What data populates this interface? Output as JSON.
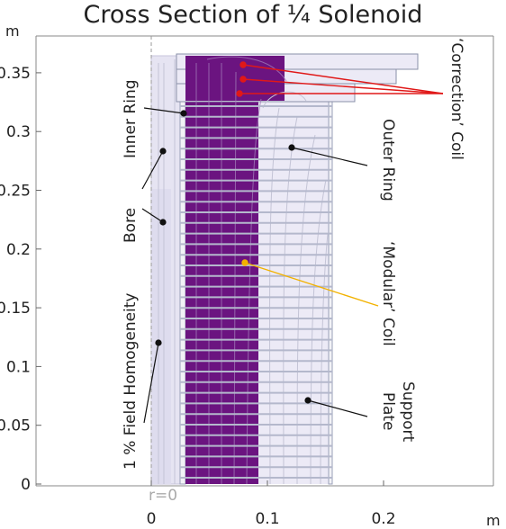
{
  "title": "Cross Section of ¼ Solenoid",
  "axes": {
    "x_unit": "m",
    "y_unit": "m",
    "x_ticks": [
      "0",
      "0.1",
      "0.2"
    ],
    "y_ticks": [
      "0",
      "0.05",
      "0.1",
      "0.15",
      "0.2",
      "0.25",
      "0.3",
      "0.35"
    ],
    "origin_label": "r=0"
  },
  "labels": {
    "correction_coil": "‘Correction’ Coil",
    "inner_ring": "Inner Ring",
    "outer_ring": "Outer Ring",
    "bore": "Bore",
    "modular_coil": "‘Modular’ Coil",
    "field_homogeneity": "1 % Field Homogeneity",
    "support_plate_1": "Support",
    "support_plate_2": "Plate"
  },
  "colors": {
    "coil": "#6b1480",
    "plates": "#9aa0b8",
    "field_region": "#eceaf6",
    "streamlines": "#c4c4d6",
    "correction_leader": "#e01818",
    "modular_leader": "#f2b200",
    "leader": "#111111"
  }
}
